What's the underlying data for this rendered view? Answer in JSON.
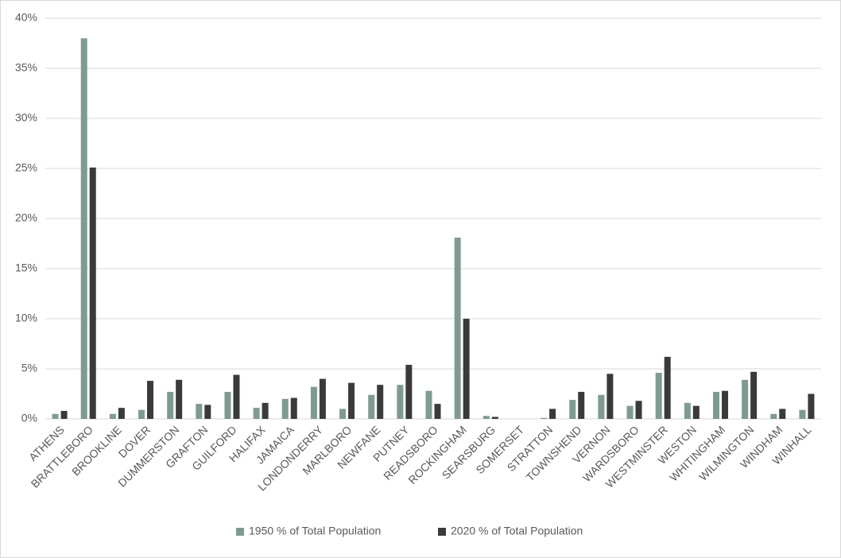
{
  "chart_data": {
    "type": "bar",
    "categories": [
      "ATHENS",
      "BRATTLEBORO",
      "BROOKLINE",
      "DOVER",
      "DUMMERSTON",
      "GRAFTON",
      "GUILFORD",
      "HALIFAX",
      "JAMAICA",
      "LONDONDERRY",
      "MARLBORO",
      "NEWFANE",
      "PUTNEY",
      "READSBORO",
      "ROCKINGHAM",
      "SEARSBURG",
      "SOMERSET",
      "STRATTON",
      "TOWNSHEND",
      "VERNON",
      "WARDSBORO",
      "WESTMINSTER",
      "WESTON",
      "WHITINGHAM",
      "WILMINGTON",
      "WINDHAM",
      "WINHALL"
    ],
    "series": [
      {
        "name": "1950 % of Total Population",
        "color": "#7f9a94",
        "values": [
          0.5,
          38.0,
          0.5,
          0.9,
          2.7,
          1.5,
          2.7,
          1.1,
          2.0,
          3.2,
          1.0,
          2.4,
          3.4,
          2.8,
          18.1,
          0.3,
          0,
          0.1,
          1.9,
          2.4,
          1.3,
          4.6,
          1.6,
          2.7,
          3.9,
          0.5,
          0.9
        ]
      },
      {
        "name": "2020 % of Total Population",
        "color": "#3a3a3a",
        "values": [
          0.8,
          25.1,
          1.1,
          3.8,
          3.9,
          1.4,
          4.4,
          1.6,
          2.1,
          4.0,
          3.6,
          3.4,
          5.4,
          1.5,
          10.0,
          0.2,
          0,
          1.0,
          2.7,
          4.5,
          1.8,
          6.2,
          1.3,
          2.8,
          4.7,
          1.0,
          2.5
        ]
      }
    ],
    "ylim": [
      0,
      40
    ],
    "yticks": [
      {
        "value": 0,
        "label": "0%"
      },
      {
        "value": 5,
        "label": "5%"
      },
      {
        "value": 10,
        "label": "10%"
      },
      {
        "value": 15,
        "label": "15%"
      },
      {
        "value": 20,
        "label": "20%"
      },
      {
        "value": 25,
        "label": "25%"
      },
      {
        "value": 30,
        "label": "30%"
      },
      {
        "value": 35,
        "label": "35%"
      },
      {
        "value": 40,
        "label": "40%"
      }
    ],
    "grid": true,
    "legend": "bottom"
  }
}
